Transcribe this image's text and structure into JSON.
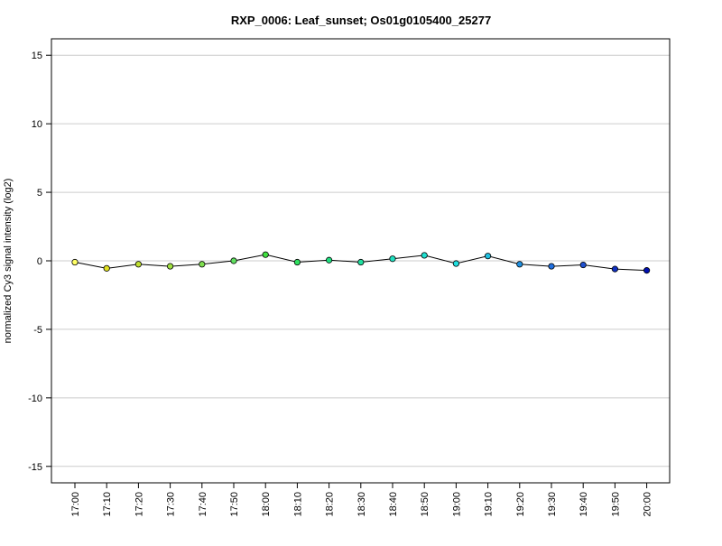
{
  "chart_data": {
    "type": "line",
    "title": "RXP_0006: Leaf_sunset; Os01g0105400_25277",
    "xlabel": "",
    "ylabel": "normalized Cy3 signal intensity (log2)",
    "ylim": [
      -16.2,
      16.2
    ],
    "yticks": [
      -15,
      -10,
      -5,
      0,
      5,
      10,
      15
    ],
    "ytick_labels": [
      "-15",
      "-10",
      "-5",
      "0",
      "5",
      "10",
      "15"
    ],
    "grid": "horizontal",
    "categories": [
      "17:00",
      "17:10",
      "17:20",
      "17:30",
      "17:40",
      "17:50",
      "18:00",
      "18:10",
      "18:20",
      "18:30",
      "18:40",
      "18:50",
      "19:00",
      "19:10",
      "19:20",
      "19:30",
      "19:40",
      "19:50",
      "20:00"
    ],
    "series": [
      {
        "values": [
          -0.1,
          -0.55,
          -0.25,
          -0.4,
          -0.25,
          0.0,
          0.45,
          -0.1,
          0.05,
          -0.1,
          0.15,
          0.4,
          -0.2,
          0.35,
          -0.25,
          -0.4,
          -0.3,
          -0.6,
          -0.7
        ],
        "colors": [
          "#ffff66",
          "#e0e020",
          "#c0e030",
          "#a0e040",
          "#80e050",
          "#60e060",
          "#40e040",
          "#30e060",
          "#20e080",
          "#20e0a0",
          "#20e0c0",
          "#20e0d0",
          "#20e0e0",
          "#20c0e0",
          "#2090e0",
          "#2070e0",
          "#2050d0",
          "#1030c0",
          "#0010b0"
        ]
      }
    ]
  }
}
